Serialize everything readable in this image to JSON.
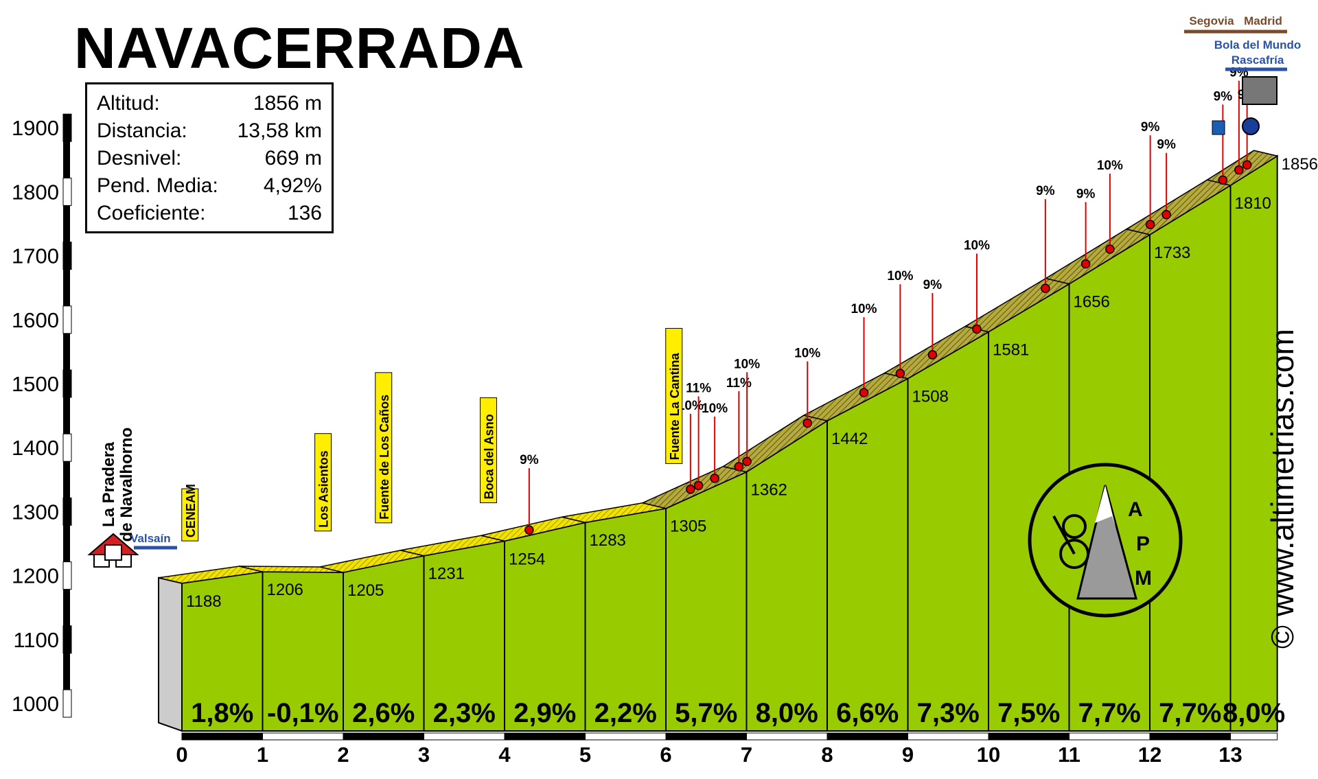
{
  "title": "NAVACERRADA",
  "stats": [
    {
      "label": "Altitud:",
      "value": "1856 m"
    },
    {
      "label": "Distancia:",
      "value": "13,58 km"
    },
    {
      "label": "Desnivel:",
      "value": "669 m"
    },
    {
      "label": "Pend. Media:",
      "value": "4,92%"
    },
    {
      "label": "Coeficiente:",
      "value": "136"
    }
  ],
  "website": "www.altimetrias.com",
  "copyright": "©",
  "logo_text": [
    "A",
    "P",
    "M"
  ],
  "start_label": [
    "La Pradera",
    "de Navalhorno"
  ],
  "colors": {
    "profile_fill": "#99cc00",
    "road_band": "#e8d900",
    "road_band_steep": "#a09a30",
    "grade_markers": "#e00000",
    "axis": "#000000"
  },
  "chart_data": {
    "type": "area",
    "title": "NAVACERRADA",
    "xlabel": "",
    "ylabel": "",
    "xlim": [
      0,
      13.58
    ],
    "ylim": [
      1000,
      1900
    ],
    "x_ticks": [
      0,
      1,
      2,
      3,
      4,
      5,
      6,
      7,
      8,
      9,
      10,
      11,
      12,
      13
    ],
    "y_ticks": [
      1000,
      1100,
      1200,
      1300,
      1400,
      1500,
      1600,
      1700,
      1800,
      1900
    ],
    "series": [
      {
        "x": [
          0,
          1,
          2,
          3,
          4,
          5,
          6,
          7,
          8,
          9,
          10,
          11,
          12,
          13,
          13.58
        ],
        "values": [
          1188,
          1206,
          1205,
          1231,
          1254,
          1283,
          1305,
          1362,
          1442,
          1508,
          1581,
          1656,
          1733,
          1810,
          1856
        ]
      }
    ],
    "km_gradients": [
      "1,8%",
      "-0,1%",
      "2,6%",
      "2,3%",
      "2,9%",
      "2,2%",
      "5,7%",
      "8,0%",
      "6,6%",
      "7,3%",
      "7,5%",
      "7,7%",
      "7,7%",
      "8,0%"
    ],
    "altitude_labels": [
      "1188",
      "1206",
      "1205",
      "1231",
      "1254",
      "1283",
      "1305",
      "1362",
      "1442",
      "1508",
      "1581",
      "1656",
      "1733",
      "1810",
      "1856"
    ],
    "max_grade_markers": [
      {
        "x": 4.45,
        "label": "9%"
      },
      {
        "x": 6.45,
        "label": "10%"
      },
      {
        "x": 6.55,
        "label": "11%"
      },
      {
        "x": 6.75,
        "label": "10%"
      },
      {
        "x": 7.05,
        "label": "11%"
      },
      {
        "x": 7.15,
        "label": "10%"
      },
      {
        "x": 7.9,
        "label": "10%"
      },
      {
        "x": 8.6,
        "label": "10%"
      },
      {
        "x": 9.05,
        "label": "10%"
      },
      {
        "x": 9.45,
        "label": "9%"
      },
      {
        "x": 10.0,
        "label": "10%"
      },
      {
        "x": 10.85,
        "label": "9%"
      },
      {
        "x": 11.35,
        "label": "9%"
      },
      {
        "x": 11.65,
        "label": "10%"
      },
      {
        "x": 12.15,
        "label": "9%"
      },
      {
        "x": 12.35,
        "label": "9%"
      },
      {
        "x": 13.05,
        "label": "9%"
      },
      {
        "x": 13.25,
        "label": "9%"
      },
      {
        "x": 13.35,
        "label": "9%"
      }
    ],
    "annotations": [
      {
        "x": 0.1,
        "label": "CENEAM"
      },
      {
        "x": 1.75,
        "label": "Los Asientos"
      },
      {
        "x": 2.5,
        "label": "Fuente de Los Caños"
      },
      {
        "x": 3.8,
        "label": "Boca del Asno"
      },
      {
        "x": 6.1,
        "label": "Fuente La Cantina"
      }
    ],
    "roads": [
      {
        "label": "Valsaín"
      },
      {
        "label": "Segovia"
      },
      {
        "label": "Madrid"
      },
      {
        "label": "Bola del Mundo"
      },
      {
        "label": "Rascafría"
      }
    ]
  }
}
